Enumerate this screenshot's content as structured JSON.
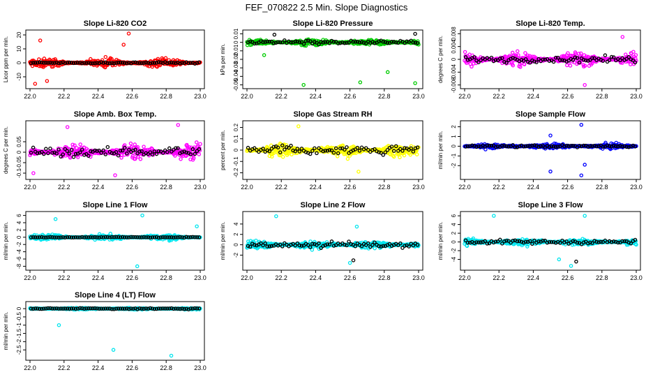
{
  "page_title": "FEF_070822  2.5 Min. Slope Diagnostics",
  "chart_data": [
    {
      "type": "scatter",
      "title": "Slope Li-820 CO2",
      "ylabel": "Licor ppm per min.",
      "color": "#ff0000",
      "xlim": [
        22.0,
        23.0
      ],
      "ylim": [
        -17,
        22
      ],
      "xticks": [
        "22.0",
        "22.2",
        "22.4",
        "22.6",
        "22.8",
        "23.0"
      ],
      "yticks": [
        -10,
        0,
        10,
        20
      ],
      "series": [
        {
          "name": "all",
          "spread": 4.5,
          "outliers": [
            [
              22.06,
              16
            ],
            [
              22.58,
              21
            ],
            [
              22.03,
              -15
            ],
            [
              22.1,
              -13
            ],
            [
              22.55,
              13
            ]
          ]
        },
        {
          "name": "selected",
          "spread": 0.8,
          "outliers": []
        }
      ]
    },
    {
      "type": "scatter",
      "title": "Slope Li-820 Pressure",
      "ylabel": "kPa per min.",
      "color": "#00cc00",
      "xlim": [
        22.0,
        23.0
      ],
      "ylim": [
        -0.052,
        0.012
      ],
      "xticks": [
        "22.0",
        "22.2",
        "22.4",
        "22.6",
        "22.8",
        "23.0"
      ],
      "yticks": [
        -0.05,
        -0.04,
        -0.03,
        -0.02,
        -0.01,
        0.0,
        0.01
      ],
      "series": [
        {
          "name": "all",
          "spread": 0.005,
          "outliers": [
            [
              22.33,
              -0.05
            ],
            [
              22.66,
              -0.047
            ],
            [
              22.98,
              -0.048
            ],
            [
              22.82,
              -0.035
            ],
            [
              22.1,
              -0.015
            ]
          ]
        },
        {
          "name": "selected",
          "spread": 0.004,
          "outliers": [
            [
              22.98,
              0.01
            ],
            [
              22.16,
              0.009
            ]
          ]
        }
      ]
    },
    {
      "type": "scatter",
      "title": "Slope Li-820 Temp.",
      "ylabel": "degrees C per min.",
      "color": "#ff00ff",
      "xlim": [
        22.0,
        23.0
      ],
      "ylim": [
        -0.0085,
        0.0085
      ],
      "xticks": [
        "22.0",
        "22.2",
        "22.4",
        "22.6",
        "22.8",
        "23.0"
      ],
      "yticks": [
        -0.008,
        -0.004,
        0.0,
        0.004,
        0.008
      ],
      "series": [
        {
          "name": "all",
          "spread": 0.003,
          "outliers": [
            [
              22.7,
              -0.008
            ],
            [
              22.92,
              0.007
            ]
          ]
        },
        {
          "name": "selected",
          "spread": 0.0015,
          "outliers": []
        }
      ]
    },
    {
      "type": "scatter",
      "title": "Slope Amb. Box Temp.",
      "ylabel": "degrees C per min.",
      "color": "#ff00ff",
      "xlim": [
        22.0,
        23.0
      ],
      "ylim": [
        -0.12,
        0.14
      ],
      "xticks": [
        "22.0",
        "22.2",
        "22.4",
        "22.6",
        "22.8",
        "23.0"
      ],
      "yticks": [
        -0.1,
        -0.05,
        0.0,
        0.05
      ],
      "series": [
        {
          "name": "all",
          "spread": 0.05,
          "outliers": [
            [
              22.02,
              -0.1
            ],
            [
              22.5,
              -0.11
            ],
            [
              22.22,
              0.12
            ],
            [
              22.87,
              0.13
            ]
          ]
        },
        {
          "name": "selected",
          "spread": 0.035,
          "outliers": []
        }
      ]
    },
    {
      "type": "scatter",
      "title": "Slope Gas Stream RH",
      "ylabel": "percent per min.",
      "color": "#ffff00",
      "xlim": [
        22.0,
        23.0
      ],
      "ylim": [
        -0.24,
        0.24
      ],
      "xticks": [
        "22.0",
        "22.2",
        "22.4",
        "22.6",
        "22.8",
        "23.0"
      ],
      "yticks": [
        -0.2,
        -0.1,
        0.0,
        0.1,
        0.2
      ],
      "series": [
        {
          "name": "all",
          "spread": 0.08,
          "outliers": [
            [
              22.3,
              0.21
            ],
            [
              22.65,
              -0.19
            ]
          ]
        },
        {
          "name": "selected",
          "spread": 0.06,
          "outliers": []
        }
      ]
    },
    {
      "type": "scatter",
      "title": "Slope Sample Flow",
      "ylabel": "ml/min per min.",
      "color": "#0000ff",
      "xlim": [
        22.0,
        23.0
      ],
      "ylim": [
        -3.2,
        2.4
      ],
      "xticks": [
        "22.0",
        "22.2",
        "22.4",
        "22.6",
        "22.8",
        "23.0"
      ],
      "yticks": [
        -2,
        -1,
        0,
        1,
        2
      ],
      "series": [
        {
          "name": "all",
          "spread": 0.35,
          "outliers": [
            [
              22.5,
              1.1
            ],
            [
              22.5,
              -2.6
            ],
            [
              22.68,
              -3.0
            ],
            [
              22.68,
              2.2
            ],
            [
              22.7,
              -1.9
            ]
          ]
        },
        {
          "name": "selected",
          "spread": 0.2,
          "outliers": []
        }
      ]
    },
    {
      "type": "scatter",
      "title": "Slope Line 1 Flow",
      "ylabel": "ml/min per min.",
      "color": "#00e5ee",
      "xlim": [
        22.0,
        23.0
      ],
      "ylim": [
        -8.5,
        6.5
      ],
      "xticks": [
        "22.0",
        "22.2",
        "22.4",
        "22.6",
        "22.8",
        "23.0"
      ],
      "yticks": [
        -8,
        -6,
        -4,
        -2,
        0,
        2,
        4,
        6
      ],
      "series": [
        {
          "name": "all",
          "spread": 1.1,
          "outliers": [
            [
              22.66,
              6
            ],
            [
              22.63,
              -8
            ],
            [
              22.98,
              3
            ],
            [
              22.15,
              5
            ]
          ]
        },
        {
          "name": "selected",
          "spread": 0.15,
          "outliers": []
        }
      ]
    },
    {
      "type": "scatter",
      "title": "Slope Line 2 Flow",
      "ylabel": "ml/min per min.",
      "color": "#00e5ee",
      "xlim": [
        22.0,
        23.0
      ],
      "ylim": [
        -4.5,
        6.0
      ],
      "xticks": [
        "22.0",
        "22.2",
        "22.4",
        "22.6",
        "22.8",
        "23.0"
      ],
      "yticks": [
        -2,
        0,
        2,
        4
      ],
      "series": [
        {
          "name": "all",
          "spread": 1.0,
          "outliers": [
            [
              22.17,
              5.5
            ],
            [
              22.6,
              -3.5
            ],
            [
              22.64,
              3.5
            ]
          ]
        },
        {
          "name": "selected",
          "spread": 0.9,
          "outliers": [
            [
              22.62,
              -3.0
            ]
          ]
        }
      ]
    },
    {
      "type": "scatter",
      "title": "Slope Line 3 Flow",
      "ylabel": "ml/min per min.",
      "color": "#00e5ee",
      "xlim": [
        22.0,
        23.0
      ],
      "ylim": [
        -6.0,
        6.5
      ],
      "xticks": [
        "22.0",
        "22.2",
        "22.4",
        "22.6",
        "22.8",
        "23.0"
      ],
      "yticks": [
        -4,
        -2,
        0,
        2,
        4,
        6
      ],
      "series": [
        {
          "name": "all",
          "spread": 1.1,
          "outliers": [
            [
              22.17,
              6
            ],
            [
              22.7,
              6
            ],
            [
              22.55,
              -4
            ],
            [
              22.62,
              -5.5
            ]
          ]
        },
        {
          "name": "selected",
          "spread": 0.8,
          "outliers": [
            [
              22.65,
              -4.5
            ]
          ]
        }
      ]
    },
    {
      "type": "scatter",
      "title": "Slope Line 4 (LT) Flow",
      "ylabel": "ml/min per min.",
      "color": "#00e5ee",
      "xlim": [
        22.0,
        23.0
      ],
      "ylim": [
        -3.0,
        0.3
      ],
      "xticks": [
        "22.0",
        "22.2",
        "22.4",
        "22.6",
        "22.8",
        "23.0"
      ],
      "yticks": [
        -2.5,
        -2.0,
        -1.5,
        -1.0,
        -0.5,
        0.0
      ],
      "series": [
        {
          "name": "all",
          "spread": 0.08,
          "outliers": [
            [
              22.17,
              -1.0
            ],
            [
              22.49,
              -2.5
            ],
            [
              22.83,
              -2.85
            ]
          ]
        },
        {
          "name": "selected",
          "spread": 0.05,
          "outliers": []
        }
      ]
    }
  ]
}
